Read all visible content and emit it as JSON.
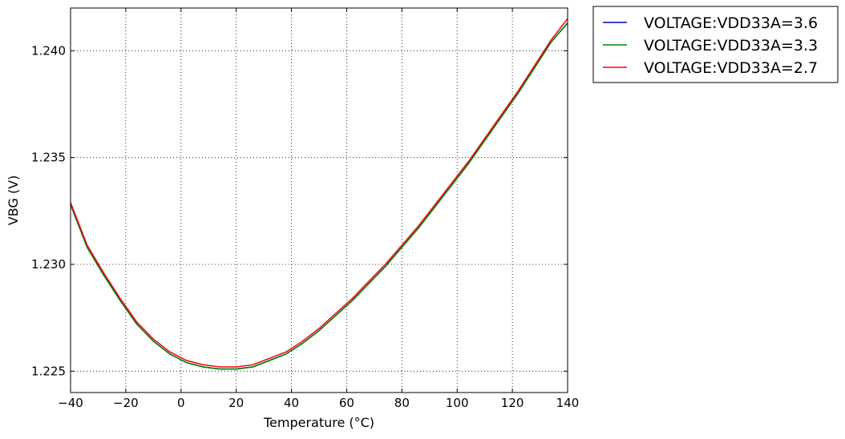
{
  "chart_data": {
    "type": "line",
    "xlabel": "Temperature (°C)",
    "ylabel": "VBG (V)",
    "xlim": [
      -40,
      140
    ],
    "ylim": [
      1.224,
      1.242
    ],
    "xticks": [
      "−40",
      "−20",
      "0",
      "20",
      "40",
      "60",
      "80",
      "100",
      "120",
      "140"
    ],
    "xtick_values": [
      -40,
      -20,
      0,
      20,
      40,
      60,
      80,
      100,
      120,
      140
    ],
    "yticks": [
      "1.225",
      "1.230",
      "1.235",
      "1.240"
    ],
    "ytick_values": [
      1.225,
      1.23,
      1.235,
      1.24
    ],
    "grid": true,
    "legend_position": "outside-top-right",
    "x": [
      -40,
      -34,
      -28,
      -22,
      -16,
      -10,
      -4,
      2,
      8,
      14,
      20,
      26,
      32,
      38,
      44,
      50,
      56,
      62,
      68,
      74,
      80,
      86,
      92,
      98,
      104,
      110,
      116,
      122,
      128,
      134,
      140
    ],
    "series": [
      {
        "name": "VOLTAGE:VDD33A=3.6",
        "color": "#0000cc",
        "values": [
          1.2328,
          1.2308,
          1.2295,
          1.2283,
          1.2272,
          1.2264,
          1.2258,
          1.2254,
          1.2252,
          1.2251,
          1.2251,
          1.2252,
          1.2255,
          1.2258,
          1.2263,
          1.2269,
          1.2276,
          1.2283,
          1.2291,
          1.2299,
          1.2308,
          1.2317,
          1.2327,
          1.2337,
          1.2347,
          1.2358,
          1.2369,
          1.238,
          1.2392,
          1.2404,
          1.2413
        ]
      },
      {
        "name": "VOLTAGE:VDD33A=3.3",
        "color": "#008000",
        "values": [
          1.2328,
          1.2308,
          1.2295,
          1.2283,
          1.2272,
          1.2264,
          1.2258,
          1.2254,
          1.2252,
          1.2251,
          1.2251,
          1.2252,
          1.2255,
          1.2258,
          1.2263,
          1.2269,
          1.2276,
          1.2283,
          1.2291,
          1.2299,
          1.2308,
          1.2317,
          1.2327,
          1.2337,
          1.2347,
          1.2358,
          1.2369,
          1.238,
          1.2392,
          1.2404,
          1.2413
        ]
      },
      {
        "name": "VOLTAGE:VDD33A=2.7",
        "color": "#ff0000",
        "values": [
          1.2329,
          1.2309,
          1.2296,
          1.2284,
          1.2273,
          1.2265,
          1.2259,
          1.2255,
          1.2253,
          1.2252,
          1.2252,
          1.2253,
          1.2256,
          1.2259,
          1.2264,
          1.227,
          1.2277,
          1.2284,
          1.2292,
          1.23,
          1.2309,
          1.2318,
          1.2328,
          1.2338,
          1.2348,
          1.2359,
          1.237,
          1.2381,
          1.2393,
          1.2405,
          1.2415
        ]
      }
    ]
  }
}
